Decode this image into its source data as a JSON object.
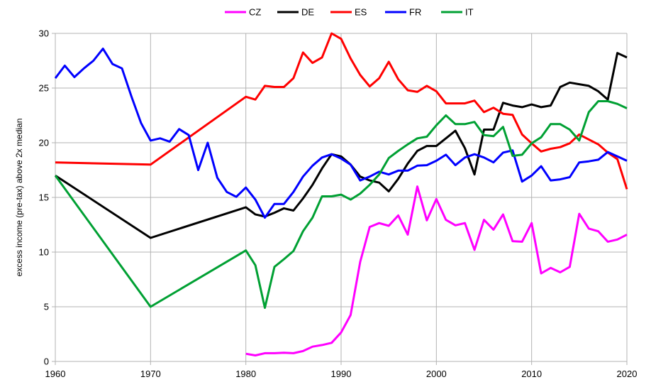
{
  "chart_data": {
    "type": "line",
    "title": "",
    "xlabel": "",
    "ylabel": "excess income (pre-tax) above 2x median",
    "xlim": [
      1960,
      2020
    ],
    "ylim": [
      0,
      30
    ],
    "x_ticks": [
      1960,
      1970,
      1980,
      1990,
      2000,
      2010,
      2020
    ],
    "y_ticks": [
      0,
      5,
      10,
      15,
      20,
      25,
      30
    ],
    "grid": true,
    "legend_position": "top",
    "series": [
      {
        "name": "CZ",
        "color": "#ff00ff",
        "x": [
          1980,
          1981,
          1982,
          1983,
          1984,
          1985,
          1986,
          1987,
          1988,
          1989,
          1990,
          1991,
          1992,
          1993,
          1994,
          1995,
          1996,
          1997,
          1998,
          1999,
          2000,
          2001,
          2002,
          2003,
          2004,
          2005,
          2006,
          2007,
          2008,
          2009,
          2010,
          2011,
          2012,
          2013,
          2014,
          2015,
          2016,
          2017,
          2018,
          2019,
          2020
        ],
        "values": [
          0.7,
          0.55,
          0.75,
          0.75,
          0.8,
          0.75,
          0.95,
          1.35,
          1.5,
          1.7,
          2.65,
          4.25,
          9.1,
          12.3,
          12.65,
          12.4,
          13.35,
          11.6,
          16.0,
          12.9,
          14.85,
          12.95,
          12.45,
          12.65,
          10.2,
          12.95,
          12.05,
          13.45,
          11.0,
          10.95,
          12.65,
          8.05,
          8.55,
          8.15,
          8.65,
          13.5,
          12.15,
          11.9,
          10.95,
          11.15,
          11.6
        ]
      },
      {
        "name": "DE",
        "color": "#000000",
        "x": [
          1960,
          1970,
          1980,
          1981,
          1982,
          1983,
          1984,
          1985,
          1986,
          1987,
          1988,
          1989,
          1990,
          1991,
          1992,
          1993,
          1994,
          1995,
          1996,
          1997,
          1998,
          1999,
          2000,
          2001,
          2002,
          2003,
          2004,
          2005,
          2006,
          2007,
          2008,
          2009,
          2010,
          2011,
          2012,
          2013,
          2014,
          2015,
          2016,
          2017,
          2018,
          2019,
          2020
        ],
        "values": [
          17.0,
          11.3,
          14.1,
          13.45,
          13.25,
          13.6,
          14.0,
          13.8,
          14.9,
          16.15,
          17.65,
          18.95,
          18.75,
          18.0,
          16.9,
          16.55,
          16.35,
          15.55,
          16.7,
          18.1,
          19.25,
          19.7,
          19.7,
          20.4,
          21.1,
          19.5,
          17.1,
          21.2,
          21.2,
          23.65,
          23.4,
          23.25,
          23.5,
          23.25,
          23.4,
          25.1,
          25.5,
          25.35,
          25.2,
          24.7,
          23.95,
          28.2,
          27.8
        ]
      },
      {
        "name": "ES",
        "color": "#ff0000",
        "x": [
          1960,
          1970,
          1980,
          1981,
          1982,
          1983,
          1984,
          1985,
          1986,
          1987,
          1988,
          1989,
          1990,
          1991,
          1992,
          1993,
          1994,
          1995,
          1996,
          1997,
          1998,
          1999,
          2000,
          2001,
          2002,
          2003,
          2004,
          2005,
          2006,
          2007,
          2008,
          2009,
          2010,
          2011,
          2012,
          2013,
          2014,
          2015,
          2016,
          2017,
          2018,
          2019,
          2020
        ],
        "values": [
          18.2,
          18.0,
          24.2,
          23.95,
          25.2,
          25.1,
          25.1,
          25.9,
          28.25,
          27.3,
          27.8,
          30.0,
          29.5,
          27.7,
          26.2,
          25.15,
          25.9,
          27.4,
          25.8,
          24.8,
          24.65,
          25.2,
          24.7,
          23.6,
          23.6,
          23.6,
          23.85,
          22.8,
          23.2,
          22.65,
          22.55,
          20.75,
          19.95,
          19.2,
          19.45,
          19.6,
          19.95,
          20.75,
          20.3,
          19.85,
          19.1,
          18.5,
          15.75
        ]
      },
      {
        "name": "FR",
        "color": "#0000ff",
        "x": [
          1960,
          1961,
          1962,
          1963,
          1964,
          1965,
          1966,
          1967,
          1968,
          1969,
          1970,
          1971,
          1972,
          1973,
          1974,
          1975,
          1976,
          1977,
          1978,
          1979,
          1980,
          1981,
          1982,
          1983,
          1984,
          1985,
          1986,
          1987,
          1988,
          1989,
          1990,
          1991,
          1992,
          1993,
          1994,
          1995,
          1996,
          1997,
          1998,
          1999,
          2000,
          2001,
          2002,
          2003,
          2004,
          2005,
          2006,
          2007,
          2008,
          2009,
          2010,
          2011,
          2012,
          2013,
          2014,
          2015,
          2016,
          2017,
          2018,
          2019,
          2020
        ],
        "values": [
          25.9,
          27.05,
          26.0,
          26.8,
          27.5,
          28.6,
          27.2,
          26.8,
          24.2,
          21.8,
          20.2,
          20.4,
          20.1,
          21.25,
          20.7,
          17.5,
          20.0,
          16.8,
          15.5,
          15.05,
          15.9,
          14.8,
          13.15,
          14.4,
          14.4,
          15.5,
          16.9,
          17.9,
          18.65,
          18.95,
          18.55,
          18.0,
          16.55,
          16.9,
          17.35,
          17.1,
          17.45,
          17.45,
          17.9,
          17.95,
          18.35,
          18.9,
          17.95,
          18.65,
          18.95,
          18.65,
          18.2,
          19.1,
          19.3,
          16.45,
          17.0,
          17.85,
          16.55,
          16.65,
          16.85,
          18.2,
          18.3,
          18.45,
          19.15,
          18.75,
          18.35
        ]
      },
      {
        "name": "IT",
        "color": "#00a033",
        "x": [
          1960,
          1970,
          1980,
          1981,
          1982,
          1983,
          1984,
          1985,
          1986,
          1987,
          1988,
          1989,
          1990,
          1991,
          1992,
          1993,
          1994,
          1995,
          1996,
          1997,
          1998,
          1999,
          2000,
          2001,
          2002,
          2003,
          2004,
          2005,
          2006,
          2007,
          2008,
          2009,
          2010,
          2011,
          2012,
          2013,
          2014,
          2015,
          2016,
          2017,
          2018,
          2019,
          2020
        ],
        "values": [
          17.0,
          5.0,
          10.15,
          8.8,
          4.9,
          8.65,
          9.35,
          10.1,
          11.9,
          13.15,
          15.1,
          15.1,
          15.25,
          14.8,
          15.35,
          16.15,
          17.1,
          18.6,
          19.25,
          19.85,
          20.4,
          20.55,
          21.6,
          22.5,
          21.7,
          21.7,
          21.9,
          20.7,
          20.6,
          21.45,
          18.8,
          18.9,
          19.95,
          20.5,
          21.7,
          21.7,
          21.2,
          20.2,
          22.8,
          23.8,
          23.8,
          23.55,
          23.15
        ]
      }
    ]
  },
  "legend": {
    "items": [
      {
        "label": "CZ",
        "color": "#ff00ff"
      },
      {
        "label": "DE",
        "color": "#000000"
      },
      {
        "label": "ES",
        "color": "#ff0000"
      },
      {
        "label": "FR",
        "color": "#0000ff"
      },
      {
        "label": "IT",
        "color": "#00a033"
      }
    ]
  },
  "axes": {
    "y_title": "excess income (pre-tax) above 2x median",
    "x_tick_labels": [
      "1960",
      "1970",
      "1980",
      "1990",
      "2000",
      "2010",
      "2020"
    ],
    "y_tick_labels": [
      "0",
      "5",
      "10",
      "15",
      "20",
      "25",
      "30"
    ]
  }
}
